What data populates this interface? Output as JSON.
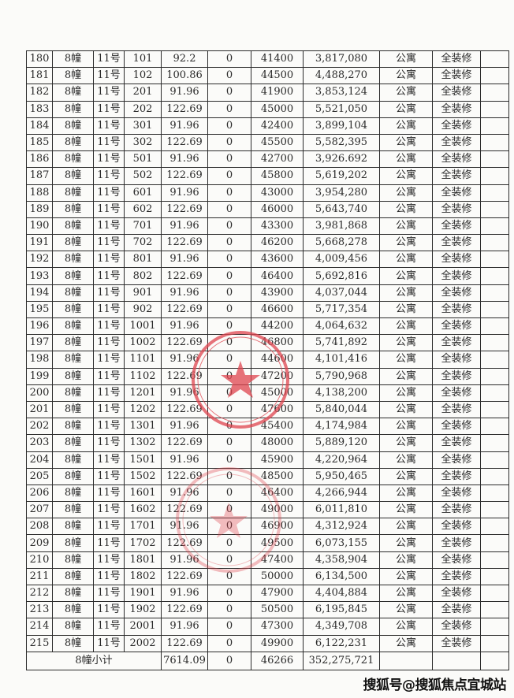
{
  "table": {
    "rows": [
      [
        "180",
        "8幢",
        "11号",
        "101",
        "92.2",
        "0",
        "41400",
        "3,817,080",
        "公寓",
        "全装修",
        ""
      ],
      [
        "181",
        "8幢",
        "11号",
        "102",
        "100.86",
        "0",
        "44500",
        "4,488,270",
        "公寓",
        "全装修",
        ""
      ],
      [
        "182",
        "8幢",
        "11号",
        "201",
        "91.96",
        "0",
        "41900",
        "3,853,124",
        "公寓",
        "全装修",
        ""
      ],
      [
        "183",
        "8幢",
        "11号",
        "202",
        "122.69",
        "0",
        "45000",
        "5,521,050",
        "公寓",
        "全装修",
        ""
      ],
      [
        "184",
        "8幢",
        "11号",
        "301",
        "91.96",
        "0",
        "42400",
        "3,899,104",
        "公寓",
        "全装修",
        ""
      ],
      [
        "185",
        "8幢",
        "11号",
        "302",
        "122.69",
        "0",
        "45500",
        "5,582,395",
        "公寓",
        "全装修",
        ""
      ],
      [
        "186",
        "8幢",
        "11号",
        "501",
        "91.96",
        "0",
        "42700",
        "3,926.692",
        "公寓",
        "全装修",
        ""
      ],
      [
        "187",
        "8幢",
        "11号",
        "502",
        "122.69",
        "0",
        "45800",
        "5,619,202",
        "公寓",
        "全装修",
        ""
      ],
      [
        "188",
        "8幢",
        "11号",
        "601",
        "91.96",
        "0",
        "43000",
        "3,954,280",
        "公寓",
        "全装修",
        ""
      ],
      [
        "189",
        "8幢",
        "11号",
        "602",
        "122.69",
        "0",
        "46000",
        "5,643,740",
        "公寓",
        "全装修",
        ""
      ],
      [
        "190",
        "8幢",
        "11号",
        "701",
        "91.96",
        "0",
        "43300",
        "3,981,868",
        "公寓",
        "全装修",
        ""
      ],
      [
        "191",
        "8幢",
        "11号",
        "702",
        "122.69",
        "0",
        "46200",
        "5,668,278",
        "公寓",
        "全装修",
        ""
      ],
      [
        "192",
        "8幢",
        "11号",
        "801",
        "91.96",
        "0",
        "43600",
        "4,009,456",
        "公寓",
        "全装修",
        ""
      ],
      [
        "193",
        "8幢",
        "11号",
        "802",
        "122.69",
        "0",
        "46400",
        "5,692,816",
        "公寓",
        "全装修",
        ""
      ],
      [
        "194",
        "8幢",
        "11号",
        "901",
        "91.96",
        "0",
        "43900",
        "4,037,044",
        "公寓",
        "全装修",
        ""
      ],
      [
        "195",
        "8幢",
        "11号",
        "902",
        "122.69",
        "0",
        "46600",
        "5,717,354",
        "公寓",
        "全装修",
        ""
      ],
      [
        "196",
        "8幢",
        "11号",
        "1001",
        "91.96",
        "0",
        "44200",
        "4,064,632",
        "公寓",
        "全装修",
        ""
      ],
      [
        "197",
        "8幢",
        "11号",
        "1002",
        "122.69",
        "0",
        "46800",
        "5,741,892",
        "公寓",
        "全装修",
        ""
      ],
      [
        "198",
        "8幢",
        "11号",
        "1101",
        "91.96",
        "0",
        "44600",
        "4,101,416",
        "公寓",
        "全装修",
        ""
      ],
      [
        "199",
        "8幢",
        "11号",
        "1102",
        "122.69",
        "0",
        "47200",
        "5,790,968",
        "公寓",
        "全装修",
        ""
      ],
      [
        "200",
        "8幢",
        "11号",
        "1201",
        "91.96",
        "0",
        "45000",
        "4,138,200",
        "公寓",
        "全装修",
        ""
      ],
      [
        "201",
        "8幢",
        "11号",
        "1202",
        "122.69",
        "0",
        "47600",
        "5,840,044",
        "公寓",
        "全装修",
        ""
      ],
      [
        "202",
        "8幢",
        "11号",
        "1301",
        "91.96",
        "0",
        "45400",
        "4,174,984",
        "公寓",
        "全装修",
        ""
      ],
      [
        "203",
        "8幢",
        "11号",
        "1302",
        "122.69",
        "0",
        "48000",
        "5,889,120",
        "公寓",
        "全装修",
        ""
      ],
      [
        "204",
        "8幢",
        "11号",
        "1501",
        "91.96",
        "0",
        "45900",
        "4,220,964",
        "公寓",
        "全装修",
        ""
      ],
      [
        "205",
        "8幢",
        "11号",
        "1502",
        "122.69",
        "0",
        "48500",
        "5,950,465",
        "公寓",
        "全装修",
        ""
      ],
      [
        "206",
        "8幢",
        "11号",
        "1601",
        "91.96",
        "0",
        "46400",
        "4,266,944",
        "公寓",
        "全装修",
        ""
      ],
      [
        "207",
        "8幢",
        "11号",
        "1602",
        "122.69",
        "0",
        "49000",
        "6,011,810",
        "公寓",
        "全装修",
        ""
      ],
      [
        "208",
        "8幢",
        "11号",
        "1701",
        "91.96",
        "0",
        "46900",
        "4,312,924",
        "公寓",
        "全装修",
        ""
      ],
      [
        "209",
        "8幢",
        "11号",
        "1702",
        "122.69",
        "0",
        "49500",
        "6,073,155",
        "公寓",
        "全装修",
        ""
      ],
      [
        "210",
        "8幢",
        "11号",
        "1801",
        "91.96",
        "0",
        "47400",
        "4,358,904",
        "公寓",
        "全装修",
        ""
      ],
      [
        "211",
        "8幢",
        "11号",
        "1802",
        "122.69",
        "0",
        "50000",
        "6,134,500",
        "公寓",
        "全装修",
        ""
      ],
      [
        "212",
        "8幢",
        "11号",
        "1901",
        "91.96",
        "0",
        "47900",
        "4,404,884",
        "公寓",
        "全装修",
        ""
      ],
      [
        "213",
        "8幢",
        "11号",
        "1902",
        "122.69",
        "0",
        "50500",
        "6,195,845",
        "公寓",
        "全装修",
        ""
      ],
      [
        "214",
        "8幢",
        "11号",
        "2001",
        "91.96",
        "0",
        "47300",
        "4,349,708",
        "公寓",
        "全装修",
        ""
      ],
      [
        "215",
        "8幢",
        "11号",
        "2002",
        "122.69",
        "0",
        "49900",
        "6,122,231",
        "公寓",
        "全装修",
        ""
      ]
    ],
    "subtotal": {
      "label": "8幢小计",
      "area": "7614.09",
      "col5": "0",
      "avg_price": "46266",
      "total": "352,275,721"
    }
  },
  "stamp": {
    "color": "#e0454f"
  },
  "watermark": "搜狐号@搜狐焦点宜城站"
}
